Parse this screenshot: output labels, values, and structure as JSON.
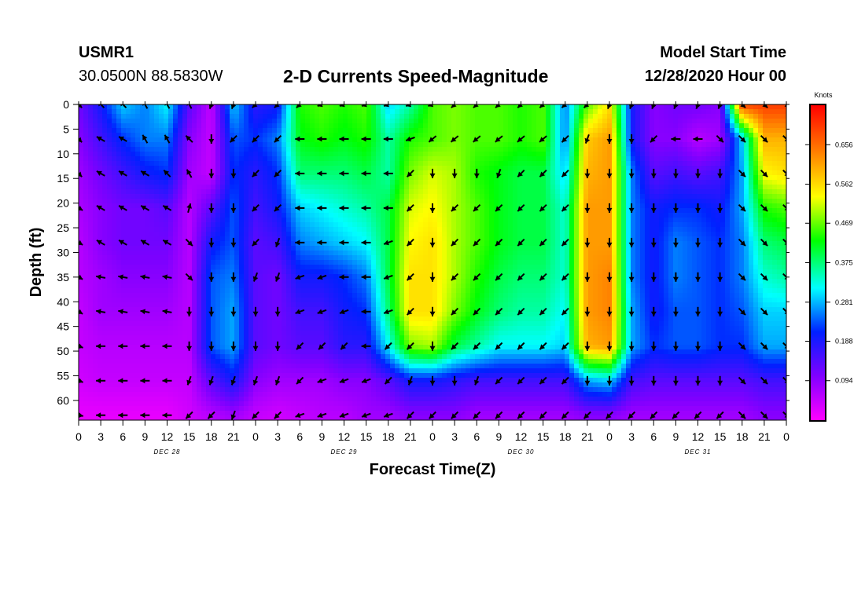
{
  "header": {
    "station_id": "USMR1",
    "coords": "30.0500N 88.5830W",
    "title": "2-D Currents Speed-Magnitude",
    "start_label": "Model Start Time",
    "start_value": "12/28/2020 Hour 00"
  },
  "colors": {
    "scale": [
      "#ff00ff",
      "#8000ff",
      "#0020ff",
      "#00ffff",
      "#00ff00",
      "#ffff00",
      "#ff8000",
      "#ff0000"
    ]
  },
  "chart_data": {
    "type": "heatmap",
    "xlabel": "Forecast Time(Z)",
    "ylabel": "Depth (ft)",
    "x_tick_labels": [
      "0",
      "3",
      "6",
      "9",
      "12",
      "15",
      "18",
      "21",
      "0",
      "3",
      "6",
      "9",
      "12",
      "15",
      "18",
      "21",
      "0",
      "3",
      "6",
      "9",
      "12",
      "15",
      "18",
      "21",
      "0",
      "3",
      "6",
      "9",
      "12",
      "15",
      "18",
      "21",
      "0"
    ],
    "x_range_hours": [
      0,
      96
    ],
    "day_labels": [
      "DEC 28",
      "DEC 29",
      "DEC 30",
      "DEC 31"
    ],
    "y_ticks": [
      0,
      5,
      10,
      15,
      20,
      25,
      30,
      35,
      40,
      45,
      50,
      55,
      60
    ],
    "y_range": [
      0,
      64
    ],
    "colorbar": {
      "title": "Knots",
      "ticks": [
        "0.656",
        "0.562",
        "0.469",
        "0.375",
        "0.281",
        "0.188",
        "0.094"
      ],
      "range": [
        0.0,
        0.75
      ]
    },
    "speed_grid": {
      "x_hours": [
        0,
        3,
        6,
        9,
        12,
        15,
        18,
        21,
        24,
        27,
        30,
        33,
        36,
        39,
        42,
        45,
        48,
        51,
        54,
        57,
        60,
        63,
        66,
        69,
        72,
        75,
        78,
        81,
        84,
        87,
        90,
        93,
        96
      ],
      "depth_ft": [
        0,
        7,
        14,
        21,
        28,
        35,
        42,
        49,
        56,
        63
      ],
      "values": [
        [
          0.12,
          0.2,
          0.3,
          0.26,
          0.32,
          0.14,
          0.05,
          0.3,
          0.18,
          0.2,
          0.44,
          0.46,
          0.44,
          0.46,
          0.3,
          0.36,
          0.46,
          0.48,
          0.46,
          0.46,
          0.44,
          0.46,
          0.26,
          0.46,
          0.56,
          0.2,
          0.1,
          0.12,
          0.12,
          0.1,
          0.7,
          0.7,
          0.7
        ],
        [
          0.1,
          0.16,
          0.22,
          0.26,
          0.26,
          0.1,
          0.05,
          0.24,
          0.22,
          0.26,
          0.42,
          0.44,
          0.42,
          0.44,
          0.36,
          0.44,
          0.46,
          0.48,
          0.46,
          0.46,
          0.44,
          0.46,
          0.26,
          0.58,
          0.62,
          0.2,
          0.1,
          0.1,
          0.06,
          0.08,
          0.3,
          0.6,
          0.6
        ],
        [
          0.08,
          0.12,
          0.16,
          0.2,
          0.22,
          0.08,
          0.05,
          0.22,
          0.18,
          0.22,
          0.38,
          0.38,
          0.38,
          0.4,
          0.36,
          0.48,
          0.52,
          0.5,
          0.44,
          0.42,
          0.4,
          0.4,
          0.3,
          0.6,
          0.62,
          0.26,
          0.14,
          0.16,
          0.14,
          0.16,
          0.28,
          0.54,
          0.56
        ],
        [
          0.07,
          0.1,
          0.12,
          0.12,
          0.14,
          0.06,
          0.14,
          0.24,
          0.16,
          0.2,
          0.3,
          0.32,
          0.34,
          0.36,
          0.4,
          0.52,
          0.54,
          0.5,
          0.46,
          0.42,
          0.4,
          0.4,
          0.34,
          0.62,
          0.62,
          0.26,
          0.2,
          0.22,
          0.22,
          0.2,
          0.28,
          0.44,
          0.46
        ],
        [
          0.06,
          0.1,
          0.12,
          0.12,
          0.12,
          0.06,
          0.2,
          0.24,
          0.14,
          0.16,
          0.26,
          0.28,
          0.3,
          0.32,
          0.4,
          0.54,
          0.56,
          0.5,
          0.46,
          0.42,
          0.4,
          0.4,
          0.34,
          0.62,
          0.62,
          0.26,
          0.2,
          0.26,
          0.24,
          0.22,
          0.26,
          0.38,
          0.4
        ],
        [
          0.06,
          0.08,
          0.1,
          0.1,
          0.1,
          0.06,
          0.24,
          0.26,
          0.14,
          0.12,
          0.2,
          0.2,
          0.22,
          0.26,
          0.4,
          0.56,
          0.56,
          0.5,
          0.44,
          0.4,
          0.38,
          0.38,
          0.34,
          0.62,
          0.64,
          0.26,
          0.2,
          0.26,
          0.24,
          0.22,
          0.26,
          0.34,
          0.36
        ],
        [
          0.05,
          0.08,
          0.08,
          0.08,
          0.08,
          0.06,
          0.24,
          0.28,
          0.14,
          0.12,
          0.16,
          0.16,
          0.2,
          0.22,
          0.38,
          0.56,
          0.56,
          0.48,
          0.42,
          0.38,
          0.36,
          0.36,
          0.32,
          0.62,
          0.64,
          0.28,
          0.2,
          0.24,
          0.24,
          0.22,
          0.24,
          0.3,
          0.3
        ],
        [
          0.05,
          0.06,
          0.06,
          0.06,
          0.06,
          0.06,
          0.24,
          0.28,
          0.14,
          0.12,
          0.14,
          0.14,
          0.18,
          0.18,
          0.32,
          0.48,
          0.5,
          0.4,
          0.36,
          0.32,
          0.32,
          0.32,
          0.3,
          0.6,
          0.62,
          0.28,
          0.22,
          0.24,
          0.24,
          0.22,
          0.22,
          0.28,
          0.28
        ],
        [
          0.04,
          0.05,
          0.05,
          0.05,
          0.05,
          0.05,
          0.14,
          0.2,
          0.1,
          0.08,
          0.08,
          0.08,
          0.1,
          0.1,
          0.14,
          0.2,
          0.2,
          0.18,
          0.16,
          0.16,
          0.16,
          0.16,
          0.16,
          0.28,
          0.3,
          0.16,
          0.14,
          0.14,
          0.14,
          0.14,
          0.14,
          0.16,
          0.16
        ],
        [
          0.02,
          0.02,
          0.02,
          0.02,
          0.02,
          0.04,
          0.06,
          0.08,
          0.05,
          0.04,
          0.05,
          0.06,
          0.06,
          0.08,
          0.08,
          0.1,
          0.1,
          0.1,
          0.08,
          0.08,
          0.08,
          0.08,
          0.08,
          0.1,
          0.1,
          0.08,
          0.08,
          0.08,
          0.08,
          0.08,
          0.08,
          0.1,
          0.1
        ]
      ]
    },
    "vectors": {
      "x_hours": [
        0,
        3,
        6,
        9,
        12,
        15,
        18,
        21,
        24,
        27,
        30,
        33,
        36,
        39,
        42,
        45,
        48,
        51,
        54,
        57,
        60,
        63,
        66,
        69,
        72,
        75,
        78,
        81,
        84,
        87,
        90,
        93,
        96
      ],
      "depth_ft": [
        0,
        7,
        14,
        21,
        28,
        35,
        42,
        49,
        56,
        63
      ],
      "direction_deg": [
        [
          135,
          315,
          315,
          330,
          330,
          330,
          200,
          200,
          225,
          225,
          225,
          250,
          250,
          250,
          250,
          250,
          250,
          225,
          225,
          225,
          225,
          225,
          225,
          225,
          200,
          200,
          200,
          200,
          200,
          200,
          135,
          135,
          135
        ],
        [
          135,
          300,
          300,
          330,
          330,
          315,
          180,
          225,
          225,
          225,
          270,
          270,
          270,
          270,
          270,
          250,
          230,
          230,
          230,
          230,
          230,
          230,
          225,
          200,
          180,
          180,
          225,
          270,
          270,
          135,
          135,
          135,
          135
        ],
        [
          135,
          300,
          300,
          300,
          315,
          330,
          180,
          180,
          225,
          225,
          270,
          270,
          270,
          270,
          270,
          225,
          180,
          180,
          180,
          200,
          225,
          225,
          225,
          180,
          180,
          180,
          180,
          180,
          180,
          180,
          135,
          135,
          135
        ],
        [
          120,
          300,
          300,
          300,
          300,
          15,
          180,
          180,
          225,
          225,
          270,
          270,
          270,
          270,
          270,
          225,
          180,
          225,
          225,
          225,
          225,
          225,
          225,
          180,
          180,
          180,
          180,
          180,
          180,
          180,
          135,
          135,
          135
        ],
        [
          120,
          300,
          300,
          300,
          300,
          135,
          180,
          180,
          225,
          200,
          270,
          270,
          270,
          270,
          250,
          225,
          180,
          225,
          225,
          225,
          225,
          225,
          225,
          180,
          180,
          180,
          180,
          180,
          180,
          180,
          135,
          135,
          135
        ],
        [
          120,
          280,
          280,
          280,
          280,
          135,
          180,
          180,
          200,
          200,
          250,
          250,
          270,
          270,
          250,
          225,
          180,
          225,
          225,
          225,
          225,
          225,
          225,
          180,
          180,
          180,
          180,
          180,
          180,
          180,
          135,
          135,
          135
        ],
        [
          120,
          280,
          280,
          280,
          280,
          180,
          180,
          180,
          180,
          180,
          250,
          250,
          250,
          270,
          250,
          225,
          180,
          225,
          225,
          225,
          225,
          225,
          225,
          180,
          180,
          180,
          180,
          180,
          180,
          180,
          135,
          135,
          135
        ],
        [
          110,
          270,
          270,
          270,
          270,
          180,
          180,
          180,
          180,
          180,
          225,
          225,
          225,
          270,
          225,
          225,
          180,
          225,
          225,
          225,
          225,
          225,
          225,
          180,
          180,
          180,
          180,
          180,
          180,
          180,
          135,
          135,
          135
        ],
        [
          110,
          270,
          270,
          270,
          270,
          200,
          200,
          200,
          200,
          200,
          225,
          250,
          250,
          250,
          225,
          200,
          180,
          180,
          200,
          225,
          225,
          225,
          225,
          180,
          180,
          180,
          180,
          180,
          180,
          180,
          135,
          135,
          135
        ],
        [
          100,
          270,
          270,
          270,
          270,
          225,
          225,
          200,
          225,
          225,
          250,
          250,
          250,
          250,
          250,
          225,
          225,
          225,
          225,
          225,
          225,
          225,
          225,
          225,
          225,
          225,
          225,
          225,
          225,
          225,
          135,
          135,
          135
        ]
      ]
    }
  }
}
